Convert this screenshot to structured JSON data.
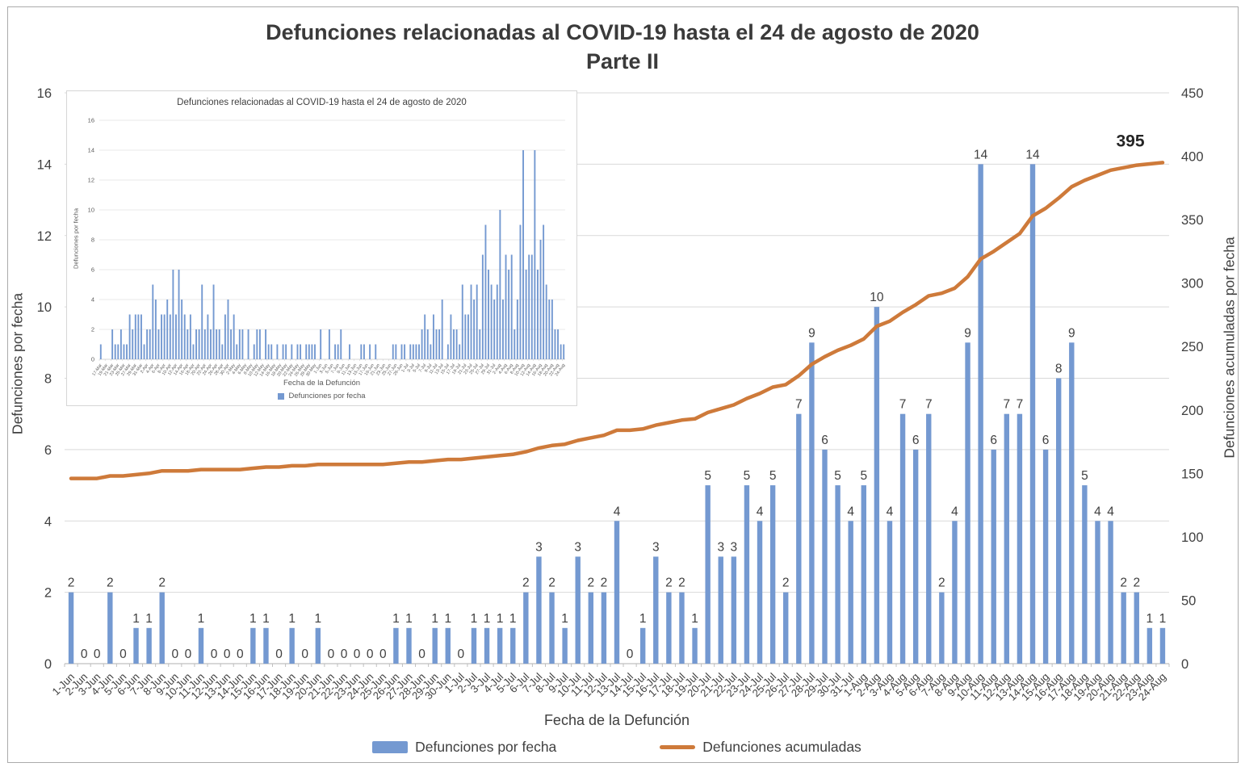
{
  "title": {
    "line1": "Defunciones relacionadas al COVID-19 hasta el 24 de agosto de 2020",
    "line2": "Parte II"
  },
  "colors": {
    "bar": "#7499D1",
    "line": "#CE7A3A",
    "grid": "#D9D9D9",
    "axis": "#BFBFBF",
    "text": "#404040",
    "end_label": "#262626"
  },
  "chart_data": {
    "type": "bar",
    "main": {
      "type": "combo-bar-line",
      "x_title": "Fecha de la Defunción",
      "y_left_title": "Defunciones por fecha",
      "y_right_title": "Defunciones acumuladas por fecha",
      "y_left": {
        "min": 0,
        "max": 16,
        "step": 2
      },
      "y_right": {
        "min": 0,
        "max": 450,
        "step": 50
      },
      "grid": true,
      "legend_position": "bottom",
      "end_annotation": "395",
      "categories": [
        "1-Jun",
        "2-Jun",
        "3-Jun",
        "4-Jun",
        "5-Jun",
        "6-Jun",
        "7-Jun",
        "8-Jun",
        "9-Jun",
        "10-Jun",
        "11-Jun",
        "12-Jun",
        "13-Jun",
        "14-Jun",
        "15-Jun",
        "16-Jun",
        "17-Jun",
        "18-Jun",
        "19-Jun",
        "20-Jun",
        "21-Jun",
        "22-Jun",
        "23-Jun",
        "24-Jun",
        "25-Jun",
        "26-Jun",
        "27-Jun",
        "28-Jun",
        "29-Jun",
        "30-Jun",
        "1-Jul",
        "2-Jul",
        "3-Jul",
        "4-Jul",
        "5-Jul",
        "6-Jul",
        "7-Jul",
        "8-Jul",
        "9-Jul",
        "10-Jul",
        "11-Jul",
        "12-Jul",
        "13-Jul",
        "14-Jul",
        "15-Jul",
        "16-Jul",
        "17-Jul",
        "18-Jul",
        "19-Jul",
        "20-Jul",
        "21-Jul",
        "22-Jul",
        "23-Jul",
        "24-Jul",
        "25-Jul",
        "26-Jul",
        "27-Jul",
        "28-Jul",
        "29-Jul",
        "30-Jul",
        "31-Jul",
        "1-Aug",
        "2-Aug",
        "3-Aug",
        "4-Aug",
        "5-Aug",
        "6-Aug",
        "7-Aug",
        "8-Aug",
        "9-Aug",
        "10-Aug",
        "11-Aug",
        "12-Aug",
        "13-Aug",
        "14-Aug",
        "15-Aug",
        "16-Aug",
        "17-Aug",
        "18-Aug",
        "19-Aug",
        "20-Aug",
        "21-Aug",
        "22-Aug",
        "23-Aug",
        "24-Aug"
      ],
      "series": [
        {
          "name": "Defunciones por fecha",
          "type": "bar",
          "axis": "left",
          "values": [
            2,
            0,
            0,
            2,
            0,
            1,
            1,
            2,
            0,
            0,
            1,
            0,
            0,
            0,
            1,
            1,
            0,
            1,
            0,
            1,
            0,
            0,
            0,
            0,
            0,
            1,
            1,
            0,
            1,
            1,
            0,
            1,
            1,
            1,
            1,
            2,
            3,
            2,
            1,
            3,
            2,
            2,
            4,
            0,
            1,
            3,
            2,
            2,
            1,
            5,
            3,
            3,
            5,
            4,
            5,
            2,
            7,
            9,
            6,
            5,
            4,
            5,
            10,
            4,
            7,
            6,
            7,
            2,
            4,
            9,
            14,
            6,
            7,
            7,
            14,
            6,
            8,
            9,
            5,
            4,
            4,
            2,
            2,
            1,
            1
          ]
        },
        {
          "name": "Defunciones acumuladas",
          "type": "line",
          "axis": "right",
          "values": [
            146,
            146,
            146,
            148,
            148,
            149,
            150,
            152,
            152,
            152,
            153,
            153,
            153,
            153,
            154,
            155,
            155,
            156,
            156,
            157,
            157,
            157,
            157,
            157,
            157,
            158,
            159,
            159,
            160,
            161,
            161,
            162,
            163,
            164,
            165,
            167,
            170,
            172,
            173,
            176,
            178,
            180,
            184,
            184,
            185,
            188,
            190,
            192,
            193,
            198,
            201,
            204,
            209,
            213,
            218,
            220,
            227,
            236,
            242,
            247,
            251,
            256,
            266,
            270,
            277,
            283,
            290,
            292,
            296,
            305,
            319,
            325,
            332,
            339,
            353,
            359,
            367,
            376,
            381,
            385,
            389,
            391,
            393,
            394,
            395
          ]
        }
      ]
    },
    "inset": {
      "type": "bar",
      "title": "Defunciones relacionadas al COVID-19 hasta el 24 de agosto de 2020",
      "x_title": "Fecha de la Defunción",
      "y_title": "Defunciones por fecha",
      "ylim": [
        0,
        16
      ],
      "y_step": 2,
      "x_label_every": 2,
      "legend": [
        "Defunciones por fecha"
      ],
      "categories": [
        "17-Mar",
        "18-Mar",
        "19-Mar",
        "20-Mar",
        "21-Mar",
        "22-Mar",
        "23-Mar",
        "24-Mar",
        "25-Mar",
        "26-Mar",
        "27-Mar",
        "28-Mar",
        "29-Mar",
        "30-Mar",
        "31-Mar",
        "1-Apr",
        "2-Apr",
        "3-Apr",
        "4-Apr",
        "5-Apr",
        "6-Apr",
        "7-Apr",
        "8-Apr",
        "9-Apr",
        "10-Apr",
        "11-Apr",
        "12-Apr",
        "13-Apr",
        "14-Apr",
        "15-Apr",
        "16-Apr",
        "17-Apr",
        "18-Apr",
        "19-Apr",
        "20-Apr",
        "21-Apr",
        "22-Apr",
        "23-Apr",
        "24-Apr",
        "25-Apr",
        "26-Apr",
        "27-Apr",
        "28-Apr",
        "29-Apr",
        "30-Apr",
        "1-May",
        "2-May",
        "3-May",
        "4-May",
        "5-May",
        "6-May",
        "7-May",
        "8-May",
        "9-May",
        "10-May",
        "11-May",
        "12-May",
        "13-May",
        "14-May",
        "15-May",
        "16-May",
        "17-May",
        "18-May",
        "19-May",
        "20-May",
        "21-May",
        "22-May",
        "23-May",
        "24-May",
        "25-May",
        "26-May",
        "27-May",
        "28-May",
        "29-May",
        "30-May",
        "31-May",
        "1-Jun",
        "2-Jun",
        "3-Jun",
        "4-Jun",
        "5-Jun",
        "6-Jun",
        "7-Jun",
        "8-Jun",
        "9-Jun",
        "10-Jun",
        "11-Jun",
        "12-Jun",
        "13-Jun",
        "14-Jun",
        "15-Jun",
        "16-Jun",
        "17-Jun",
        "18-Jun",
        "19-Jun",
        "20-Jun",
        "21-Jun",
        "22-Jun",
        "23-Jun",
        "24-Jun",
        "25-Jun",
        "26-Jun",
        "27-Jun",
        "28-Jun",
        "29-Jun",
        "30-Jun",
        "1-Jul",
        "2-Jul",
        "3-Jul",
        "4-Jul",
        "5-Jul",
        "6-Jul",
        "7-Jul",
        "8-Jul",
        "9-Jul",
        "10-Jul",
        "11-Jul",
        "12-Jul",
        "13-Jul",
        "14-Jul",
        "15-Jul",
        "16-Jul",
        "17-Jul",
        "18-Jul",
        "19-Jul",
        "20-Jul",
        "21-Jul",
        "22-Jul",
        "23-Jul",
        "24-Jul",
        "25-Jul",
        "26-Jul",
        "27-Jul",
        "28-Jul",
        "29-Jul",
        "30-Jul",
        "31-Jul",
        "1-Aug",
        "2-Aug",
        "3-Aug",
        "4-Aug",
        "5-Aug",
        "6-Aug",
        "7-Aug",
        "8-Aug",
        "9-Aug",
        "10-Aug",
        "11-Aug",
        "12-Aug",
        "13-Aug",
        "14-Aug",
        "15-Aug",
        "16-Aug",
        "17-Aug",
        "18-Aug",
        "19-Aug",
        "20-Aug",
        "21-Aug",
        "22-Aug",
        "23-Aug",
        "24-Aug"
      ],
      "values": [
        1,
        0,
        0,
        0,
        2,
        1,
        1,
        2,
        1,
        1,
        3,
        2,
        3,
        3,
        3,
        1,
        2,
        2,
        5,
        4,
        2,
        3,
        3,
        4,
        3,
        6,
        3,
        6,
        4,
        3,
        2,
        3,
        1,
        2,
        2,
        5,
        2,
        3,
        2,
        5,
        2,
        2,
        1,
        3,
        4,
        2,
        3,
        1,
        2,
        2,
        0,
        2,
        0,
        1,
        2,
        2,
        0,
        2,
        1,
        1,
        0,
        1,
        0,
        1,
        1,
        0,
        1,
        0,
        1,
        1,
        0,
        1,
        1,
        1,
        1,
        0,
        2,
        0,
        0,
        2,
        0,
        1,
        1,
        2,
        0,
        0,
        1,
        0,
        0,
        0,
        1,
        1,
        0,
        1,
        0,
        1,
        0,
        0,
        0,
        0,
        0,
        1,
        1,
        0,
        1,
        1,
        0,
        1,
        1,
        1,
        1,
        2,
        3,
        2,
        1,
        3,
        2,
        2,
        4,
        0,
        1,
        3,
        2,
        2,
        1,
        5,
        3,
        3,
        5,
        4,
        5,
        2,
        7,
        9,
        6,
        5,
        4,
        5,
        10,
        4,
        7,
        6,
        7,
        2,
        4,
        9,
        14,
        6,
        7,
        7,
        14,
        6,
        8,
        9,
        5,
        4,
        4,
        2,
        2,
        1,
        1
      ]
    }
  }
}
